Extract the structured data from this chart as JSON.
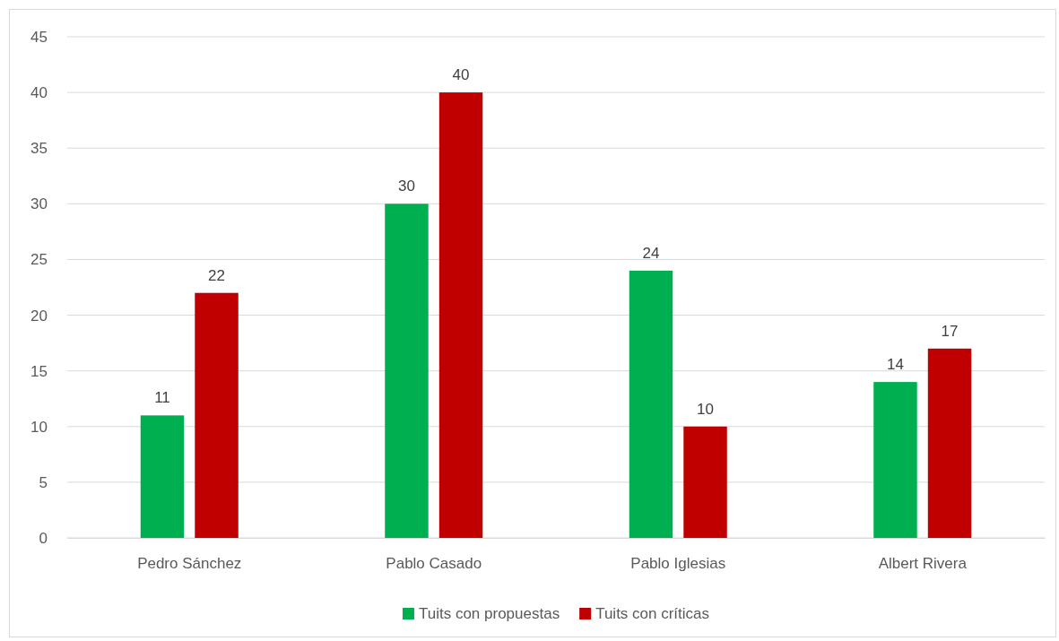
{
  "chart_data": {
    "type": "bar",
    "categories": [
      "Pedro Sánchez",
      "Pablo Casado",
      "Pablo Iglesias",
      "Albert Rivera"
    ],
    "series": [
      {
        "name": "Tuits con propuestas",
        "color": "#00b050",
        "values": [
          11,
          30,
          24,
          14
        ]
      },
      {
        "name": "Tuits con críticas",
        "color": "#c00000",
        "values": [
          22,
          40,
          10,
          17
        ]
      }
    ],
    "ylim": [
      0,
      45
    ],
    "yticks": [
      0,
      5,
      10,
      15,
      20,
      25,
      30,
      35,
      40,
      45
    ],
    "grid": "y",
    "legend": "bottom",
    "data_labels": true
  }
}
